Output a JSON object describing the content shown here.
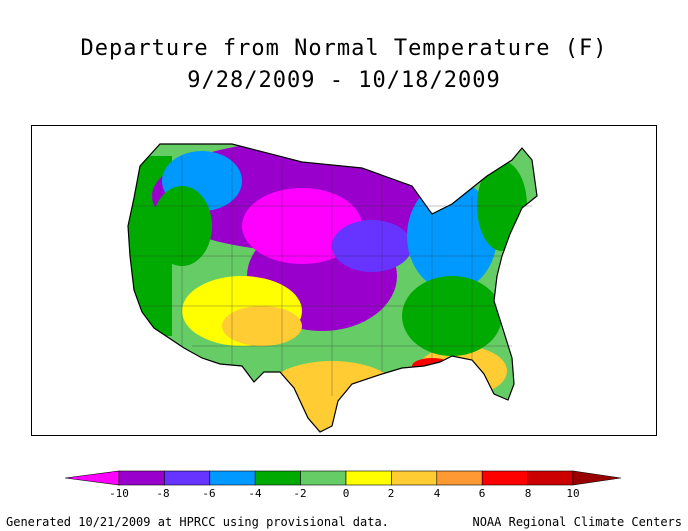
{
  "title": {
    "line1": "Departure from Normal Temperature (F)",
    "line2": "9/28/2009 - 10/18/2009"
  },
  "legend": {
    "ticks": [
      "-10",
      "-8",
      "-6",
      "-4",
      "-2",
      "0",
      "2",
      "4",
      "6",
      "8",
      "10"
    ],
    "colors": [
      "#ff00ff",
      "#9900cc",
      "#6633ff",
      "#0099ff",
      "#00aa00",
      "#66cc66",
      "#ffff00",
      "#ffcc33",
      "#ff9933",
      "#ff0000",
      "#cc0000",
      "#990000"
    ]
  },
  "footer": {
    "left": "Generated 10/21/2009 at HPRCC using provisional data.",
    "right": "NOAA Regional Climate Centers"
  }
}
